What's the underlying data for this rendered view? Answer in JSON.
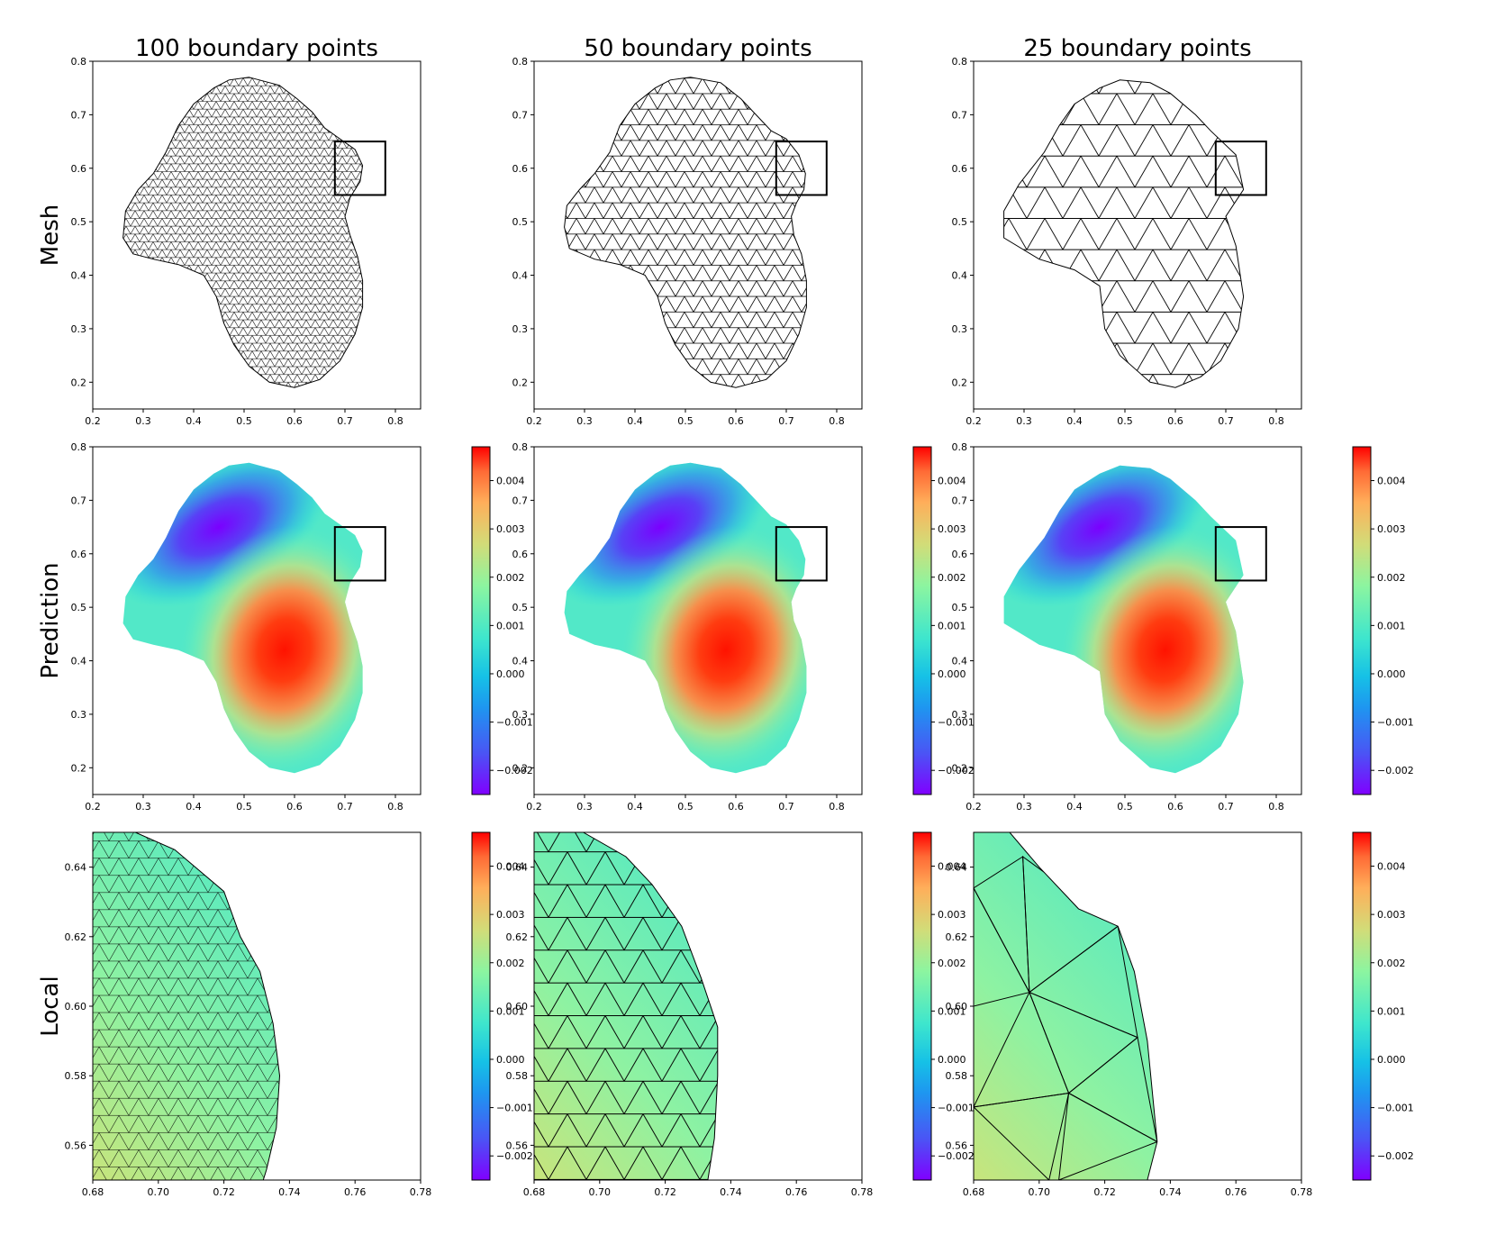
{
  "titles": [
    "100 boundary points",
    "50 boundary points",
    "25 boundary points"
  ],
  "row_labels": [
    "Mesh",
    "Prediction",
    "Local"
  ],
  "chart_data": {
    "type": "field-plot-grid",
    "columns": [
      {
        "title": "100 boundary points",
        "boundary_points": 100
      },
      {
        "title": "50 boundary points",
        "boundary_points": 50
      },
      {
        "title": "25 boundary points",
        "boundary_points": 25
      }
    ],
    "rows": [
      {
        "label": "Mesh",
        "kind": "triangular mesh",
        "xlim": [
          0.2,
          0.85
        ],
        "ylim": [
          0.15,
          0.8
        ],
        "xticks": [
          "0.2",
          "0.3",
          "0.4",
          "0.5",
          "0.6",
          "0.7",
          "0.8"
        ],
        "yticks": [
          "0.2",
          "0.3",
          "0.4",
          "0.5",
          "0.6",
          "0.7",
          "0.8"
        ],
        "zoom_box": {
          "x0": 0.68,
          "x1": 0.78,
          "y0": 0.55,
          "y1": 0.65
        }
      },
      {
        "label": "Prediction",
        "kind": "colored field",
        "xlim": [
          0.2,
          0.85
        ],
        "ylim": [
          0.15,
          0.8
        ],
        "xticks": [
          "0.2",
          "0.3",
          "0.4",
          "0.5",
          "0.6",
          "0.7",
          "0.8"
        ],
        "yticks": [
          "0.2",
          "0.3",
          "0.4",
          "0.5",
          "0.6",
          "0.7",
          "0.8"
        ],
        "zoom_box": {
          "x0": 0.68,
          "x1": 0.78,
          "y0": 0.55,
          "y1": 0.65
        },
        "colorbar": {
          "range": [
            -0.0025,
            0.0047
          ],
          "ticks": [
            "0.004",
            "0.003",
            "0.002",
            "0.001",
            "0.000",
            "−0.001",
            "−0.002"
          ]
        },
        "extrema": {
          "min": {
            "x": 0.45,
            "y": 0.65,
            "value": -0.0025
          },
          "max": {
            "x": 0.58,
            "y": 0.42,
            "value": 0.0047
          }
        }
      },
      {
        "label": "Local",
        "kind": "zoomed mesh over field",
        "xlim": [
          0.68,
          0.78
        ],
        "ylim": [
          0.55,
          0.65
        ],
        "xticks": [
          "0.68",
          "0.70",
          "0.72",
          "0.74",
          "0.76",
          "0.78"
        ],
        "yticks": [
          "0.56",
          "0.58",
          "0.60",
          "0.62",
          "0.64"
        ],
        "colorbar": {
          "range": [
            -0.0025,
            0.0047
          ],
          "ticks": [
            "0.004",
            "0.003",
            "0.002",
            "0.001",
            "0.000",
            "−0.001",
            "−0.002"
          ]
        }
      }
    ]
  }
}
